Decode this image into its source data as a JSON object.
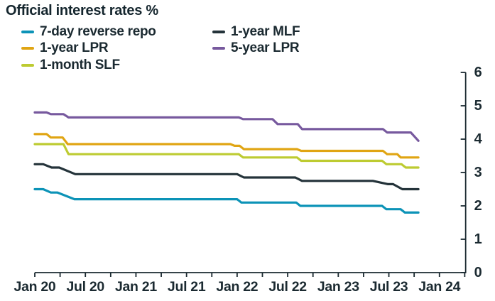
{
  "title": "Official interest rates %",
  "colors": {
    "text": "#1b2a31",
    "axis": "#1b2a31",
    "background": "#ffffff",
    "repo7d": "#0c93b7",
    "lpr1y": "#e0a513",
    "slf1m": "#bdcb31",
    "mlf1y": "#24333a",
    "lpr5y": "#77599e"
  },
  "legend": {
    "columns": [
      {
        "items": [
          {
            "series": "repo7d",
            "label": "7-day reverse repo"
          },
          {
            "series": "lpr1y",
            "label": "1-year LPR"
          },
          {
            "series": "slf1m",
            "label": "1-month SLF"
          }
        ]
      },
      {
        "items": [
          {
            "series": "mlf1y",
            "label": "1-year MLF"
          },
          {
            "series": "lpr5y",
            "label": "5-year LPR"
          }
        ]
      }
    ]
  },
  "chart_data": {
    "type": "line",
    "title": "Official interest rates %",
    "xlabel": "",
    "ylabel": "%",
    "ylim": [
      0,
      6
    ],
    "y_ticks": [
      0,
      1,
      2,
      3,
      4,
      5,
      6
    ],
    "y_axis_side": "right",
    "grid": false,
    "legend_position": "top-left",
    "x_unit": "months since Jan 2020",
    "x_range_months": [
      0,
      51
    ],
    "x_minor_tick_every_months": 3,
    "x_labels": [
      {
        "month": 0,
        "label": "Jan 20"
      },
      {
        "month": 6,
        "label": "Jul 20"
      },
      {
        "month": 12,
        "label": "Jan 21"
      },
      {
        "month": 18,
        "label": "Jul 21"
      },
      {
        "month": 24,
        "label": "Jan 22"
      },
      {
        "month": 30,
        "label": "Jul 22"
      },
      {
        "month": 36,
        "label": "Jan 23"
      },
      {
        "month": 42,
        "label": "Jul 23"
      },
      {
        "month": 48,
        "label": "Jan 24"
      }
    ],
    "series": [
      {
        "id": "lpr5y",
        "name": "5-year LPR",
        "color": "#77599e",
        "points": [
          [
            0,
            4.8
          ],
          [
            1.4,
            4.8
          ],
          [
            1.9,
            4.75
          ],
          [
            3.4,
            4.75
          ],
          [
            4.0,
            4.65
          ],
          [
            24.2,
            4.65
          ],
          [
            24.7,
            4.6
          ],
          [
            28.2,
            4.6
          ],
          [
            28.8,
            4.45
          ],
          [
            31.2,
            4.45
          ],
          [
            31.7,
            4.3
          ],
          [
            41.3,
            4.3
          ],
          [
            41.8,
            4.2
          ],
          [
            44.6,
            4.2
          ],
          [
            45.5,
            3.95
          ]
        ]
      },
      {
        "id": "lpr1y",
        "name": "1-year LPR",
        "color": "#e0a513",
        "points": [
          [
            0,
            4.15
          ],
          [
            1.4,
            4.15
          ],
          [
            1.9,
            4.05
          ],
          [
            3.3,
            4.05
          ],
          [
            3.9,
            3.85
          ],
          [
            23.2,
            3.85
          ],
          [
            23.7,
            3.8
          ],
          [
            24.3,
            3.8
          ],
          [
            24.8,
            3.7
          ],
          [
            31.1,
            3.7
          ],
          [
            31.6,
            3.65
          ],
          [
            41.3,
            3.65
          ],
          [
            41.8,
            3.55
          ],
          [
            43.0,
            3.55
          ],
          [
            43.4,
            3.45
          ],
          [
            45.5,
            3.45
          ]
        ]
      },
      {
        "id": "slf1m",
        "name": "1-month SLF",
        "color": "#bdcb31",
        "points": [
          [
            0,
            3.85
          ],
          [
            3.4,
            3.85
          ],
          [
            4.0,
            3.55
          ],
          [
            24.2,
            3.55
          ],
          [
            24.7,
            3.45
          ],
          [
            31.1,
            3.45
          ],
          [
            31.6,
            3.35
          ],
          [
            41.2,
            3.35
          ],
          [
            41.7,
            3.25
          ],
          [
            43.5,
            3.25
          ],
          [
            44.0,
            3.15
          ],
          [
            45.5,
            3.15
          ]
        ]
      },
      {
        "id": "mlf1y",
        "name": "1-year MLF",
        "color": "#24333a",
        "points": [
          [
            0,
            3.25
          ],
          [
            1.0,
            3.25
          ],
          [
            2.0,
            3.15
          ],
          [
            2.9,
            3.15
          ],
          [
            4.8,
            2.95
          ],
          [
            24.0,
            2.95
          ],
          [
            24.8,
            2.85
          ],
          [
            30.9,
            2.85
          ],
          [
            31.7,
            2.75
          ],
          [
            40.1,
            2.75
          ],
          [
            41.9,
            2.65
          ],
          [
            42.5,
            2.65
          ],
          [
            43.6,
            2.5
          ],
          [
            45.5,
            2.5
          ]
        ]
      },
      {
        "id": "repo7d",
        "name": "7-day reverse repo",
        "color": "#0c93b7",
        "points": [
          [
            0,
            2.5
          ],
          [
            1.0,
            2.5
          ],
          [
            1.9,
            2.4
          ],
          [
            2.7,
            2.4
          ],
          [
            4.7,
            2.2
          ],
          [
            24.0,
            2.2
          ],
          [
            24.5,
            2.1
          ],
          [
            31.0,
            2.1
          ],
          [
            31.5,
            2.0
          ],
          [
            41.2,
            2.0
          ],
          [
            41.7,
            1.9
          ],
          [
            43.4,
            1.9
          ],
          [
            43.9,
            1.8
          ],
          [
            45.5,
            1.8
          ]
        ]
      }
    ]
  }
}
